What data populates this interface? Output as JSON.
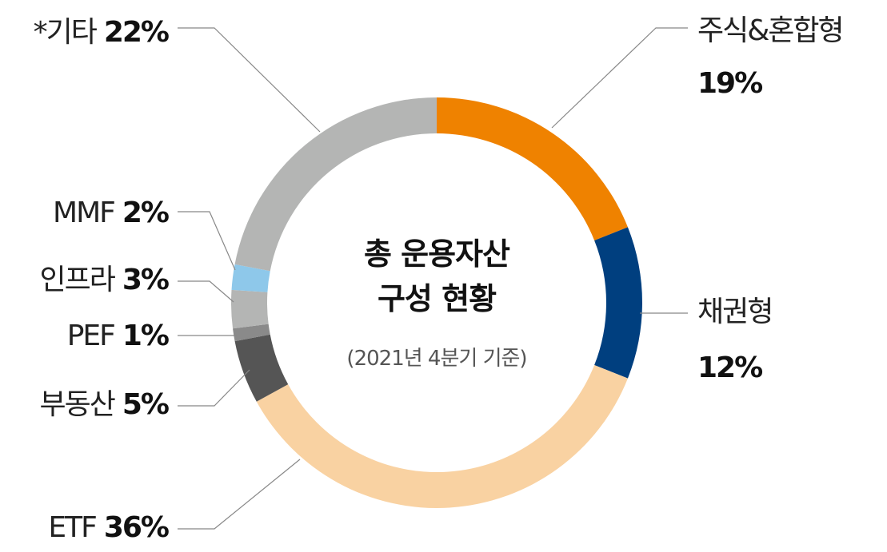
{
  "chart_data": {
    "type": "donut",
    "title": "총 운용자산 구성 현황",
    "subtitle": "(2021년 4분기 기준)",
    "categories": [
      "주식&혼합형",
      "채권형",
      "ETF",
      "부동산",
      "PEF",
      "인프라",
      "MMF",
      "*기타"
    ],
    "values": [
      19,
      12,
      36,
      5,
      1,
      3,
      2,
      22
    ],
    "value_labels": [
      "19%",
      "12%",
      "36%",
      "5%",
      "1%",
      "3%",
      "2%",
      "22%"
    ],
    "colors": [
      "#ef8200",
      "#003f7f",
      "#f9d2a2",
      "#555555",
      "#8a8a8a",
      "#b4b5b4",
      "#8ec8ea",
      "#b4b5b4"
    ]
  }
}
